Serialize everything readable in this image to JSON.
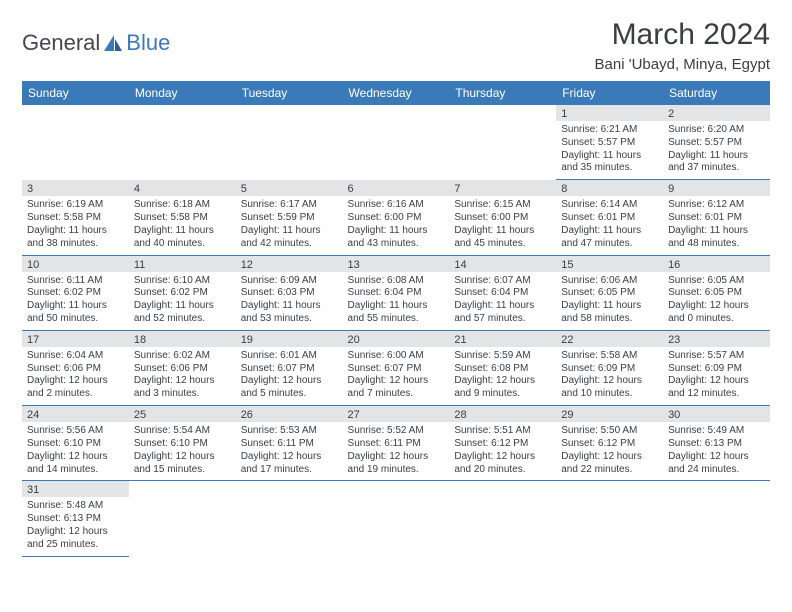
{
  "logo": {
    "general": "General",
    "blue": "Blue"
  },
  "title": "March 2024",
  "location": "Bani 'Ubayd, Minya, Egypt",
  "day_headers": [
    "Sunday",
    "Monday",
    "Tuesday",
    "Wednesday",
    "Thursday",
    "Friday",
    "Saturday"
  ],
  "colors": {
    "header_bg": "#3b7ab8",
    "header_fg": "#ffffff",
    "daynum_bg": "#e3e4e5",
    "text": "#3a3e42",
    "rule": "#3b7ab8"
  },
  "weeks": [
    [
      null,
      null,
      null,
      null,
      null,
      {
        "n": "1",
        "sunrise": "Sunrise: 6:21 AM",
        "sunset": "Sunset: 5:57 PM",
        "day1": "Daylight: 11 hours",
        "day2": "and 35 minutes."
      },
      {
        "n": "2",
        "sunrise": "Sunrise: 6:20 AM",
        "sunset": "Sunset: 5:57 PM",
        "day1": "Daylight: 11 hours",
        "day2": "and 37 minutes."
      }
    ],
    [
      {
        "n": "3",
        "sunrise": "Sunrise: 6:19 AM",
        "sunset": "Sunset: 5:58 PM",
        "day1": "Daylight: 11 hours",
        "day2": "and 38 minutes."
      },
      {
        "n": "4",
        "sunrise": "Sunrise: 6:18 AM",
        "sunset": "Sunset: 5:58 PM",
        "day1": "Daylight: 11 hours",
        "day2": "and 40 minutes."
      },
      {
        "n": "5",
        "sunrise": "Sunrise: 6:17 AM",
        "sunset": "Sunset: 5:59 PM",
        "day1": "Daylight: 11 hours",
        "day2": "and 42 minutes."
      },
      {
        "n": "6",
        "sunrise": "Sunrise: 6:16 AM",
        "sunset": "Sunset: 6:00 PM",
        "day1": "Daylight: 11 hours",
        "day2": "and 43 minutes."
      },
      {
        "n": "7",
        "sunrise": "Sunrise: 6:15 AM",
        "sunset": "Sunset: 6:00 PM",
        "day1": "Daylight: 11 hours",
        "day2": "and 45 minutes."
      },
      {
        "n": "8",
        "sunrise": "Sunrise: 6:14 AM",
        "sunset": "Sunset: 6:01 PM",
        "day1": "Daylight: 11 hours",
        "day2": "and 47 minutes."
      },
      {
        "n": "9",
        "sunrise": "Sunrise: 6:12 AM",
        "sunset": "Sunset: 6:01 PM",
        "day1": "Daylight: 11 hours",
        "day2": "and 48 minutes."
      }
    ],
    [
      {
        "n": "10",
        "sunrise": "Sunrise: 6:11 AM",
        "sunset": "Sunset: 6:02 PM",
        "day1": "Daylight: 11 hours",
        "day2": "and 50 minutes."
      },
      {
        "n": "11",
        "sunrise": "Sunrise: 6:10 AM",
        "sunset": "Sunset: 6:02 PM",
        "day1": "Daylight: 11 hours",
        "day2": "and 52 minutes."
      },
      {
        "n": "12",
        "sunrise": "Sunrise: 6:09 AM",
        "sunset": "Sunset: 6:03 PM",
        "day1": "Daylight: 11 hours",
        "day2": "and 53 minutes."
      },
      {
        "n": "13",
        "sunrise": "Sunrise: 6:08 AM",
        "sunset": "Sunset: 6:04 PM",
        "day1": "Daylight: 11 hours",
        "day2": "and 55 minutes."
      },
      {
        "n": "14",
        "sunrise": "Sunrise: 6:07 AM",
        "sunset": "Sunset: 6:04 PM",
        "day1": "Daylight: 11 hours",
        "day2": "and 57 minutes."
      },
      {
        "n": "15",
        "sunrise": "Sunrise: 6:06 AM",
        "sunset": "Sunset: 6:05 PM",
        "day1": "Daylight: 11 hours",
        "day2": "and 58 minutes."
      },
      {
        "n": "16",
        "sunrise": "Sunrise: 6:05 AM",
        "sunset": "Sunset: 6:05 PM",
        "day1": "Daylight: 12 hours",
        "day2": "and 0 minutes."
      }
    ],
    [
      {
        "n": "17",
        "sunrise": "Sunrise: 6:04 AM",
        "sunset": "Sunset: 6:06 PM",
        "day1": "Daylight: 12 hours",
        "day2": "and 2 minutes."
      },
      {
        "n": "18",
        "sunrise": "Sunrise: 6:02 AM",
        "sunset": "Sunset: 6:06 PM",
        "day1": "Daylight: 12 hours",
        "day2": "and 3 minutes."
      },
      {
        "n": "19",
        "sunrise": "Sunrise: 6:01 AM",
        "sunset": "Sunset: 6:07 PM",
        "day1": "Daylight: 12 hours",
        "day2": "and 5 minutes."
      },
      {
        "n": "20",
        "sunrise": "Sunrise: 6:00 AM",
        "sunset": "Sunset: 6:07 PM",
        "day1": "Daylight: 12 hours",
        "day2": "and 7 minutes."
      },
      {
        "n": "21",
        "sunrise": "Sunrise: 5:59 AM",
        "sunset": "Sunset: 6:08 PM",
        "day1": "Daylight: 12 hours",
        "day2": "and 9 minutes."
      },
      {
        "n": "22",
        "sunrise": "Sunrise: 5:58 AM",
        "sunset": "Sunset: 6:09 PM",
        "day1": "Daylight: 12 hours",
        "day2": "and 10 minutes."
      },
      {
        "n": "23",
        "sunrise": "Sunrise: 5:57 AM",
        "sunset": "Sunset: 6:09 PM",
        "day1": "Daylight: 12 hours",
        "day2": "and 12 minutes."
      }
    ],
    [
      {
        "n": "24",
        "sunrise": "Sunrise: 5:56 AM",
        "sunset": "Sunset: 6:10 PM",
        "day1": "Daylight: 12 hours",
        "day2": "and 14 minutes."
      },
      {
        "n": "25",
        "sunrise": "Sunrise: 5:54 AM",
        "sunset": "Sunset: 6:10 PM",
        "day1": "Daylight: 12 hours",
        "day2": "and 15 minutes."
      },
      {
        "n": "26",
        "sunrise": "Sunrise: 5:53 AM",
        "sunset": "Sunset: 6:11 PM",
        "day1": "Daylight: 12 hours",
        "day2": "and 17 minutes."
      },
      {
        "n": "27",
        "sunrise": "Sunrise: 5:52 AM",
        "sunset": "Sunset: 6:11 PM",
        "day1": "Daylight: 12 hours",
        "day2": "and 19 minutes."
      },
      {
        "n": "28",
        "sunrise": "Sunrise: 5:51 AM",
        "sunset": "Sunset: 6:12 PM",
        "day1": "Daylight: 12 hours",
        "day2": "and 20 minutes."
      },
      {
        "n": "29",
        "sunrise": "Sunrise: 5:50 AM",
        "sunset": "Sunset: 6:12 PM",
        "day1": "Daylight: 12 hours",
        "day2": "and 22 minutes."
      },
      {
        "n": "30",
        "sunrise": "Sunrise: 5:49 AM",
        "sunset": "Sunset: 6:13 PM",
        "day1": "Daylight: 12 hours",
        "day2": "and 24 minutes."
      }
    ],
    [
      {
        "n": "31",
        "sunrise": "Sunrise: 5:48 AM",
        "sunset": "Sunset: 6:13 PM",
        "day1": "Daylight: 12 hours",
        "day2": "and 25 minutes."
      },
      null,
      null,
      null,
      null,
      null,
      null
    ]
  ]
}
